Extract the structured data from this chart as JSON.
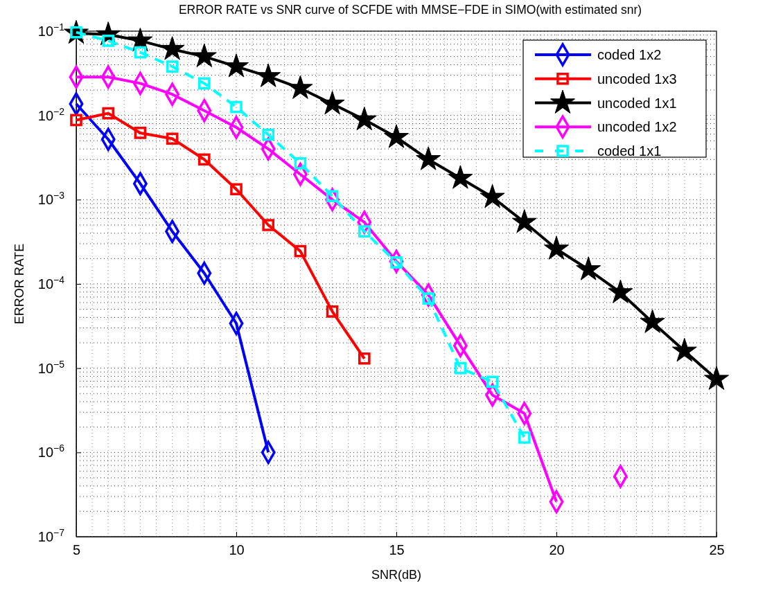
{
  "chart_data": {
    "type": "line",
    "title": "ERROR RATE vs SNR curve of SCFDE with MMSE−FDE in SIMO(with estimated snr)",
    "xlabel": "SNR(dB)",
    "ylabel": "ERROR RATE",
    "x": [
      5,
      6,
      7,
      8,
      9,
      10,
      11,
      12,
      13,
      14,
      15,
      16,
      17,
      18,
      19,
      20,
      21,
      22,
      23,
      24,
      25
    ],
    "series": [
      {
        "name": "coded 1x2",
        "color": "#0000ff",
        "marker": "diamond",
        "line_style": "solid",
        "values": [
          0.0137,
          0.0052,
          0.00155,
          0.00042,
          0.000134,
          3.4e-05,
          1e-06,
          null,
          null,
          null,
          null,
          null,
          null,
          null,
          null,
          null,
          null,
          null,
          null,
          null,
          null
        ]
      },
      {
        "name": "uncoded 1x3",
        "color": "#ff0000",
        "marker": "square",
        "line_style": "solid",
        "values": [
          0.0088,
          0.0106,
          0.0062,
          0.0053,
          0.003,
          0.00133,
          0.0005,
          0.000245,
          4.7e-05,
          1.3e-05,
          null,
          null,
          null,
          null,
          null,
          null,
          null,
          null,
          null,
          null,
          null
        ]
      },
      {
        "name": "uncoded 1x1",
        "color": "#000000",
        "marker": "star",
        "line_style": "solid",
        "values": [
          0.095,
          0.091,
          0.077,
          0.061,
          0.05,
          0.038,
          0.029,
          0.021,
          0.0137,
          0.0089,
          0.0055,
          0.003,
          0.0018,
          0.00107,
          0.00054,
          0.00026,
          0.000148,
          7.9e-05,
          3.5e-05,
          1.6e-05,
          7.4e-06
        ]
      },
      {
        "name": "uncoded 1x2",
        "color": "#ff00ff",
        "marker": "diamond",
        "line_style": "solid",
        "values": [
          0.0285,
          0.0285,
          0.024,
          0.0178,
          0.0114,
          0.0072,
          0.004,
          0.002,
          0.001,
          0.00054,
          0.000185,
          7.4e-05,
          1.85e-05,
          4.8e-06,
          2.9e-06,
          2.6e-07,
          null,
          5.2e-07,
          null,
          null,
          null
        ]
      },
      {
        "name": "coded 1x1",
        "color": "#00ffff",
        "marker": "square",
        "line_style": "dashed",
        "values": [
          0.097,
          0.077,
          0.056,
          0.038,
          0.024,
          0.0126,
          0.0059,
          0.0027,
          0.0011,
          0.00042,
          0.00018,
          6.7e-05,
          1e-05,
          6.9e-06,
          1.5e-06,
          null,
          null,
          null,
          null,
          null,
          null
        ]
      }
    ],
    "xlim": [
      5,
      25
    ],
    "xticks": [
      5,
      10,
      15,
      20,
      25
    ],
    "ylim": [
      1e-07,
      0.1
    ],
    "log": true,
    "yticks": [
      {
        "value": 1e-07,
        "label": "10$^{−7}$"
      },
      {
        "value": 1e-06,
        "label": "10$^{−6}$"
      },
      {
        "value": 1e-05,
        "label": "10$^{−5}$"
      },
      {
        "value": 0.0001,
        "label": "10$^{−4}$"
      },
      {
        "value": 0.001,
        "label": "10$^{−3}$"
      },
      {
        "value": 0.01,
        "label": "10$^{−2}$"
      },
      {
        "value": 0.1,
        "label": "10$^{−1}$"
      }
    ],
    "grid": true,
    "legend": "top right"
  }
}
